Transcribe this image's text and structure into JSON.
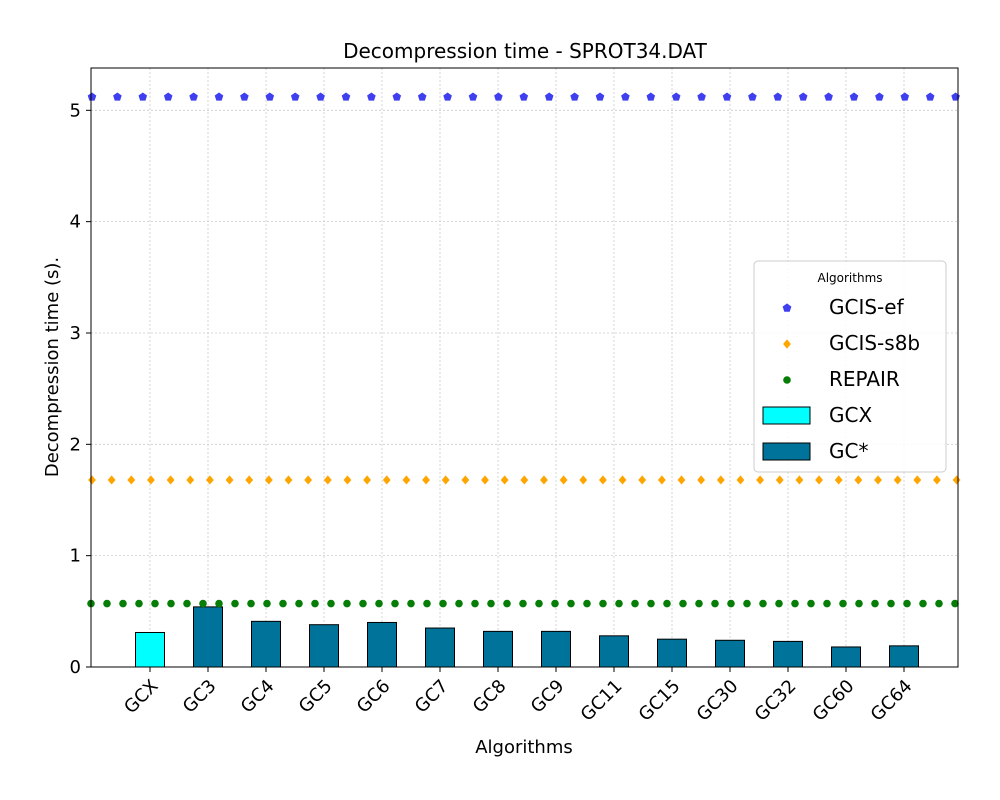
{
  "chart_data": {
    "type": "bar",
    "title": "Decompression time -  SPROT34.DAT",
    "xlabel": "Algorithms",
    "ylabel": "Decompression time (s).",
    "ylim": [
      0,
      5.38
    ],
    "yticks": [
      0,
      1,
      2,
      3,
      4,
      5
    ],
    "grid": true,
    "categories": [
      "GCX",
      "GC3",
      "GC4",
      "GC5",
      "GC6",
      "GC7",
      "GC8",
      "GC9",
      "GC11",
      "GC15",
      "GC30",
      "GC32",
      "GC60",
      "GC64"
    ],
    "bars": [
      {
        "category": "GCX",
        "value": 0.31,
        "series": "GCX"
      },
      {
        "category": "GC3",
        "value": 0.54,
        "series": "GC*"
      },
      {
        "category": "GC4",
        "value": 0.41,
        "series": "GC*"
      },
      {
        "category": "GC5",
        "value": 0.38,
        "series": "GC*"
      },
      {
        "category": "GC6",
        "value": 0.4,
        "series": "GC*"
      },
      {
        "category": "GC7",
        "value": 0.35,
        "series": "GC*"
      },
      {
        "category": "GC8",
        "value": 0.32,
        "series": "GC*"
      },
      {
        "category": "GC9",
        "value": 0.32,
        "series": "GC*"
      },
      {
        "category": "GC11",
        "value": 0.28,
        "series": "GC*"
      },
      {
        "category": "GC15",
        "value": 0.25,
        "series": "GC*"
      },
      {
        "category": "GC30",
        "value": 0.24,
        "series": "GC*"
      },
      {
        "category": "GC32",
        "value": 0.23,
        "series": "GC*"
      },
      {
        "category": "GC60",
        "value": 0.18,
        "series": "GC*"
      },
      {
        "category": "GC64",
        "value": 0.19,
        "series": "GC*"
      }
    ],
    "reference_lines": [
      {
        "name": "GCIS-ef",
        "value": 5.12,
        "color": "#3f3fef",
        "marker": "pentagon"
      },
      {
        "name": "GCIS-s8b",
        "value": 1.68,
        "color": "#ffa500",
        "marker": "diamond"
      },
      {
        "name": "REPAIR",
        "value": 0.57,
        "color": "#067d06",
        "marker": "circle"
      }
    ],
    "bar_series": [
      {
        "name": "GCX",
        "color": "#00ffff"
      },
      {
        "name": "GC*",
        "color": "#00739a"
      }
    ],
    "legend": {
      "title": "Algorithms",
      "placement": "center-right",
      "entries": [
        "GCIS-ef",
        "GCIS-s8b",
        "REPAIR",
        "GCX",
        "GC*"
      ]
    }
  }
}
